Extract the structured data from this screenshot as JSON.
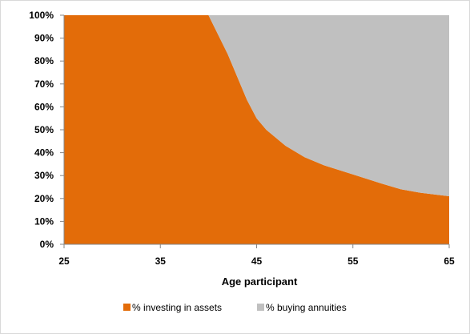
{
  "chart_data": {
    "type": "area",
    "stacked": true,
    "xlabel": "Age participant",
    "ylabel": "",
    "xlim": [
      25,
      65
    ],
    "ylim": [
      0,
      1
    ],
    "x_ticks": [
      25,
      35,
      45,
      55,
      65
    ],
    "y_ticks": [
      "0%",
      "10%",
      "20%",
      "30%",
      "40%",
      "50%",
      "60%",
      "70%",
      "80%",
      "90%",
      "100%"
    ],
    "x": [
      25,
      30,
      35,
      40,
      42,
      44,
      45,
      46,
      48,
      50,
      52,
      55,
      58,
      60,
      62,
      65
    ],
    "series": [
      {
        "name": "% investing in assets",
        "color": "#e36c09",
        "values": [
          1.0,
          1.0,
          1.0,
          1.0,
          0.83,
          0.63,
          0.55,
          0.5,
          0.43,
          0.38,
          0.345,
          0.305,
          0.265,
          0.24,
          0.225,
          0.21
        ]
      },
      {
        "name": "% buying annuities",
        "color": "#c0c0c0",
        "values": [
          0.0,
          0.0,
          0.0,
          0.0,
          0.17,
          0.37,
          0.45,
          0.5,
          0.57,
          0.62,
          0.655,
          0.695,
          0.735,
          0.76,
          0.775,
          0.79
        ]
      }
    ],
    "grid": false,
    "legend_position": "bottom"
  }
}
